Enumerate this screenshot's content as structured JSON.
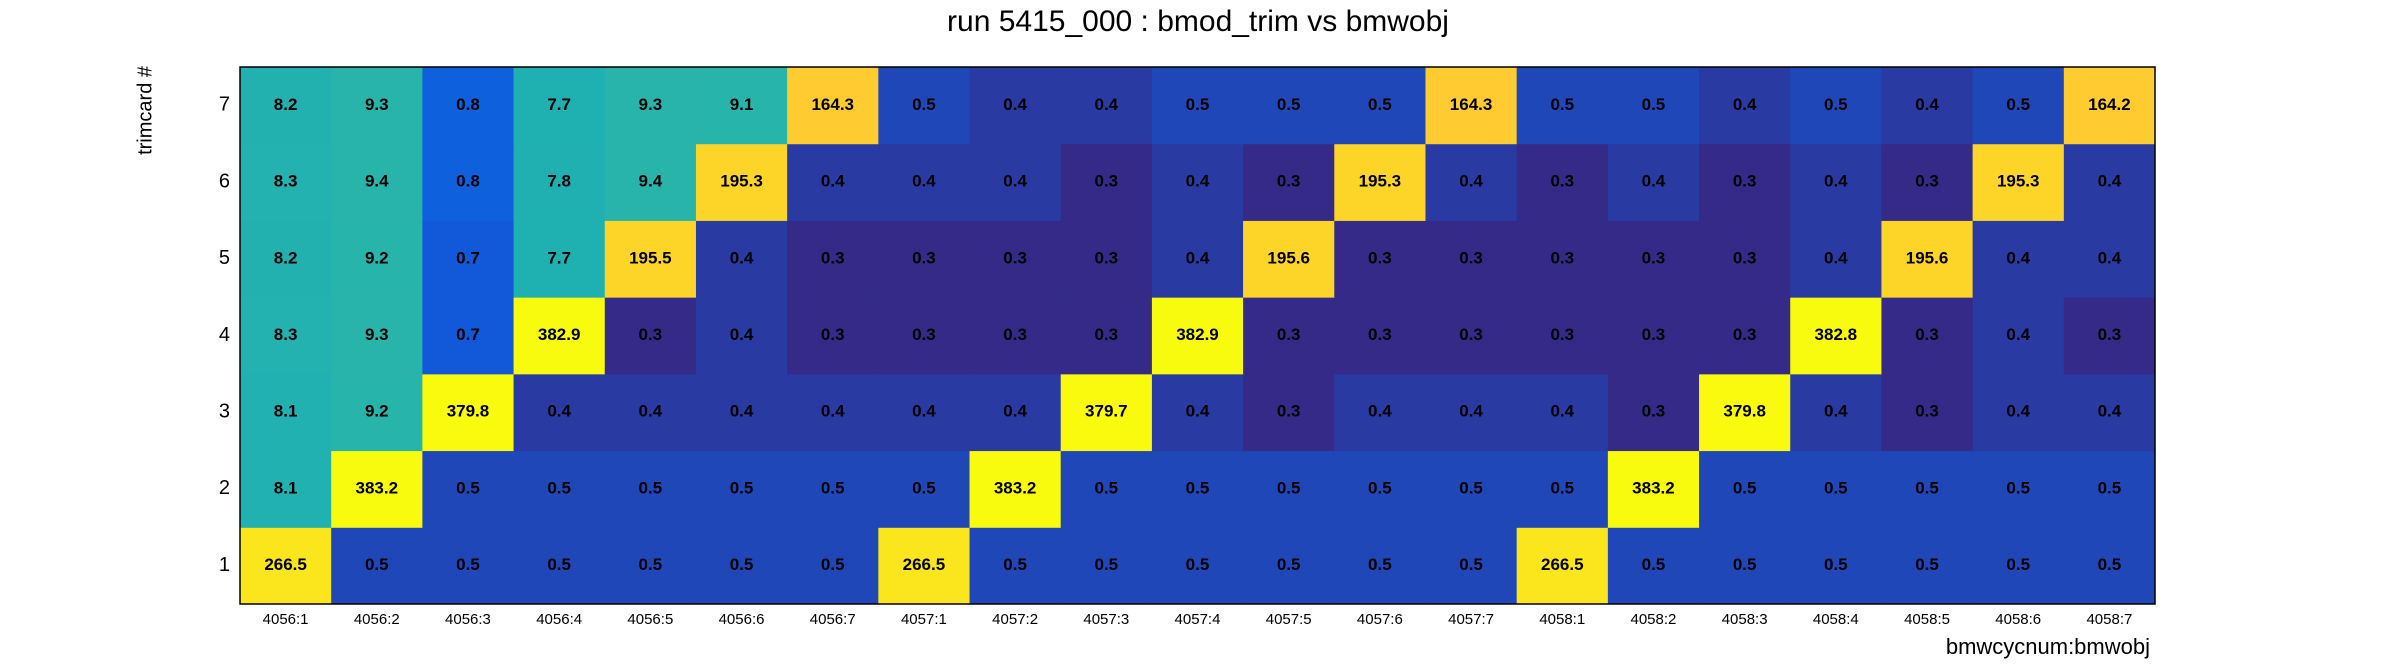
{
  "chart_data": {
    "type": "heatmap",
    "title": "run 5415_000 : bmod_trim vs bmwobj",
    "x_label": "bmwcycnum:bmwobj",
    "y_label": "trimcard #",
    "categories": [
      "4056:1",
      "4056:2",
      "4056:3",
      "4056:4",
      "4056:5",
      "4056:6",
      "4056:7",
      "4057:1",
      "4057:2",
      "4057:3",
      "4057:4",
      "4057:5",
      "4057:6",
      "4057:7",
      "4058:1",
      "4058:2",
      "4058:3",
      "4058:4",
      "4058:5",
      "4058:6",
      "4058:7"
    ],
    "y": [
      1,
      2,
      3,
      4,
      5,
      6,
      7
    ],
    "values": [
      [
        266.5,
        0.5,
        0.5,
        0.5,
        0.5,
        0.5,
        0.5,
        266.5,
        0.5,
        0.5,
        0.5,
        0.5,
        0.5,
        0.5,
        266.5,
        0.5,
        0.5,
        0.5,
        0.5,
        0.5,
        0.5
      ],
      [
        8.1,
        383.2,
        0.5,
        0.5,
        0.5,
        0.5,
        0.5,
        0.5,
        383.2,
        0.5,
        0.5,
        0.5,
        0.5,
        0.5,
        0.5,
        383.2,
        0.5,
        0.5,
        0.5,
        0.5,
        0.5
      ],
      [
        8.1,
        9.2,
        379.8,
        0.4,
        0.4,
        0.4,
        0.4,
        0.4,
        0.4,
        379.7,
        0.4,
        0.3,
        0.4,
        0.4,
        0.4,
        0.3,
        379.8,
        0.4,
        0.3,
        0.4,
        0.4
      ],
      [
        8.3,
        9.3,
        0.7,
        382.9,
        0.3,
        0.4,
        0.3,
        0.3,
        0.3,
        0.3,
        382.9,
        0.3,
        0.3,
        0.3,
        0.3,
        0.3,
        0.3,
        382.8,
        0.3,
        0.4,
        0.3
      ],
      [
        8.2,
        9.2,
        0.7,
        7.7,
        195.5,
        0.4,
        0.3,
        0.3,
        0.3,
        0.3,
        0.4,
        195.6,
        0.3,
        0.3,
        0.3,
        0.3,
        0.3,
        0.4,
        195.6,
        0.4,
        0.4
      ],
      [
        8.3,
        9.4,
        0.8,
        7.8,
        9.4,
        195.3,
        0.4,
        0.4,
        0.4,
        0.3,
        0.4,
        0.3,
        195.3,
        0.4,
        0.3,
        0.4,
        0.3,
        0.4,
        0.3,
        195.3,
        0.4
      ],
      [
        8.2,
        9.3,
        0.8,
        7.7,
        9.3,
        9.1,
        164.3,
        0.5,
        0.4,
        0.4,
        0.5,
        0.5,
        0.5,
        164.3,
        0.5,
        0.5,
        0.4,
        0.5,
        0.4,
        0.5,
        164.2
      ]
    ],
    "color_log": true,
    "palette": [
      "#352a87",
      "#0f5cdd",
      "#1481d6",
      "#06a4ca",
      "#2eb7a4",
      "#87bf77",
      "#d1bb59",
      "#fec832",
      "#f9fb0e"
    ]
  }
}
